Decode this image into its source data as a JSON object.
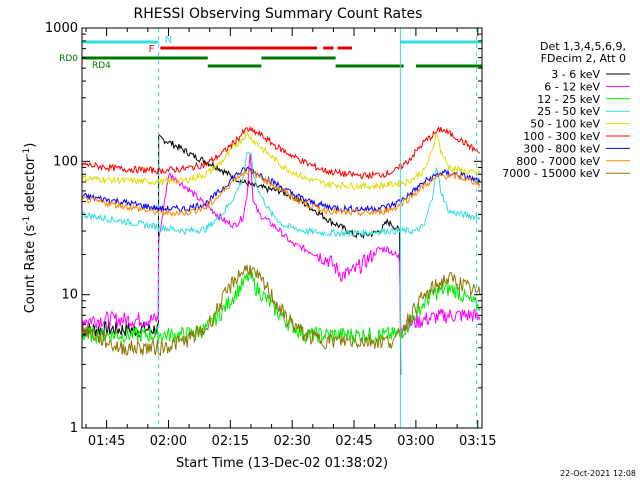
{
  "chart_data": {
    "type": "line",
    "title": "RHESSI Observing Summary Count Rates",
    "xlabel": "Start Time (13-Dec-02 01:38:02)",
    "ylabel_main": "Count Rate (s",
    "ylabel_sup1": "-1",
    "ylabel_mid": " detector",
    "ylabel_sup2": "-1",
    "ylabel_end": ")",
    "yscale": "log",
    "ylim": [
      1,
      1000
    ],
    "xlim_minutes": [
      1.0,
      98.0
    ],
    "ytick_values": [
      1,
      10,
      100,
      1000
    ],
    "ytick_labels": [
      "1",
      "10",
      "100",
      "1000"
    ],
    "xtick_minutes": [
      6.97,
      21.97,
      36.97,
      51.97,
      66.97,
      81.97,
      96.97
    ],
    "xtick_labels": [
      "01:45",
      "02:00",
      "02:15",
      "02:30",
      "02:45",
      "03:00",
      "03:15"
    ],
    "legend_header": [
      "Det 1,3,4,5,6,9,",
      "FDecim 2, Att 0"
    ],
    "legend_position": "right",
    "timestamp": "22-Oct-2021 12:08",
    "vlines_minutes": [
      {
        "t": 19.6,
        "style": "dashed",
        "color": "#33dddd"
      },
      {
        "t": 78.2,
        "style": "solid",
        "color": "#33dddd"
      },
      {
        "t": 96.7,
        "style": "dashed",
        "color": "#33dddd"
      }
    ],
    "flag_bars": [
      {
        "label": "N",
        "color": "#33dddd",
        "segments": [
          [
            1,
            19.6
          ],
          [
            78.2,
            98
          ]
        ]
      },
      {
        "label": "F",
        "color": "#e00000",
        "segments": [
          [
            20.0,
            58.0
          ],
          [
            59.5,
            62.0
          ],
          [
            63.0,
            66.5
          ]
        ]
      },
      {
        "label": "RD0",
        "color": "#007700",
        "segments": [
          [
            1,
            31.5
          ],
          [
            44.5,
            62.5
          ]
        ]
      },
      {
        "label": "RD4",
        "color": "#007700",
        "segments": [
          [
            31.5,
            44.5
          ],
          [
            62.5,
            79.0
          ],
          [
            82.0,
            98
          ]
        ]
      }
    ],
    "series": [
      {
        "name": "3 - 6 keV",
        "color": "#000000",
        "t": [
          1,
          19.5,
          19.6,
          22,
          25,
          28,
          31,
          34,
          37,
          40,
          43,
          46,
          49,
          52,
          55,
          58,
          61,
          64,
          67,
          70,
          72,
          73,
          74,
          75,
          76,
          77,
          78,
          78.3
        ],
        "values": [
          5.5,
          5.5,
          150,
          140,
          125,
          110,
          100,
          90,
          78,
          70,
          65,
          62,
          60,
          55,
          48,
          42,
          36,
          32,
          28,
          28,
          29,
          30,
          32,
          35,
          34,
          32,
          30,
          2.5
        ]
      },
      {
        "name": "6 - 12 keV",
        "color": "#ff00ff",
        "t": [
          1,
          19.5,
          19.6,
          22,
          26,
          30,
          33,
          36,
          38,
          40,
          41,
          41.8,
          42.5,
          44,
          46,
          49,
          52,
          55,
          58,
          61,
          64,
          67,
          70,
          73,
          75,
          77,
          78,
          78.3,
          80,
          84,
          87,
          90,
          93,
          96,
          97.5
        ],
        "values": [
          6.5,
          6.5,
          25,
          80,
          65,
          50,
          42,
          35,
          33,
          38,
          55,
          120,
          50,
          40,
          36,
          30,
          24,
          22,
          20,
          18,
          14,
          15,
          18,
          22,
          22,
          20,
          18,
          6,
          6,
          6.5,
          6.8,
          7,
          7,
          7,
          6.5
        ]
      },
      {
        "name": "12 - 25 keV",
        "color": "#00ee00",
        "t": [
          1,
          10,
          20,
          26,
          31,
          35,
          38,
          40,
          41.8,
          43,
          46,
          50,
          55,
          60,
          65,
          70,
          74,
          77,
          78,
          80,
          83,
          86,
          89,
          91,
          93,
          95,
          97.5
        ],
        "values": [
          5,
          5,
          5,
          5,
          5.5,
          7.5,
          10,
          12,
          14,
          11.5,
          9,
          6.5,
          5,
          5,
          5,
          5,
          5,
          5,
          5,
          6,
          8,
          10,
          11,
          11,
          10,
          9,
          8
        ]
      },
      {
        "name": "25 - 50 keV",
        "color": "#33dddd",
        "t": [
          1,
          10,
          20,
          26,
          31,
          35,
          38,
          40,
          41.0,
          41.8,
          42.6,
          44,
          47,
          50,
          55,
          60,
          65,
          70,
          74,
          77,
          79,
          82,
          84,
          86,
          87,
          88,
          90,
          93,
          97.5
        ],
        "values": [
          40,
          36,
          32,
          30,
          31,
          40,
          55,
          75,
          110,
          120,
          80,
          58,
          40,
          33,
          30,
          29,
          29,
          29,
          30,
          30,
          30,
          30,
          33,
          55,
          90,
          60,
          42,
          40,
          38
        ]
      },
      {
        "name": "50 - 100 keV",
        "color": "#dddd00",
        "t": [
          1,
          10,
          20,
          26,
          31,
          35,
          38,
          41,
          43,
          46,
          50,
          55,
          60,
          65,
          70,
          74,
          77,
          80,
          84,
          86,
          87,
          88,
          90,
          93,
          97.5
        ],
        "values": [
          75,
          72,
          70,
          72,
          80,
          100,
          130,
          160,
          140,
          115,
          90,
          75,
          68,
          66,
          65,
          66,
          68,
          70,
          85,
          120,
          170,
          120,
          90,
          85,
          80
        ]
      },
      {
        "name": "100 - 300 keV",
        "color": "#ff0000",
        "t": [
          1,
          10,
          20,
          26,
          31,
          35,
          38,
          41,
          44,
          48,
          52,
          56,
          60,
          65,
          70,
          74,
          77,
          80,
          84,
          88,
          92,
          95,
          97.5
        ],
        "values": [
          95,
          88,
          85,
          88,
          95,
          115,
          140,
          175,
          160,
          130,
          110,
          95,
          85,
          80,
          78,
          80,
          85,
          100,
          140,
          175,
          150,
          130,
          115
        ]
      },
      {
        "name": "300 - 800 keV",
        "color": "#0000ff",
        "t": [
          1,
          10,
          20,
          26,
          31,
          35,
          38,
          41,
          44,
          48,
          52,
          56,
          60,
          65,
          70,
          74,
          77,
          80,
          84,
          88,
          92,
          95,
          97.5
        ],
        "values": [
          55,
          50,
          44,
          44,
          48,
          62,
          78,
          88,
          80,
          68,
          57,
          50,
          46,
          44,
          44,
          45,
          48,
          55,
          70,
          82,
          80,
          75,
          70
        ]
      },
      {
        "name": "800 - 7000 keV",
        "color": "#ff8800",
        "t": [
          1,
          10,
          20,
          26,
          31,
          35,
          38,
          41,
          44,
          48,
          52,
          56,
          60,
          65,
          70,
          74,
          77,
          80,
          84,
          88,
          92,
          95,
          97.5
        ],
        "values": [
          52,
          47,
          41,
          41,
          45,
          58,
          74,
          85,
          77,
          65,
          54,
          47,
          43,
          41,
          41,
          42,
          45,
          52,
          66,
          78,
          77,
          72,
          68
        ]
      },
      {
        "name": "7000 - 15000 keV",
        "color": "#887700",
        "t": [
          1,
          10,
          20,
          26,
          31,
          35,
          38,
          40,
          41.5,
          43,
          46,
          50,
          55,
          60,
          65,
          70,
          74,
          77,
          78,
          80,
          83,
          86,
          89,
          91,
          93,
          95,
          97.5
        ],
        "values": [
          5.5,
          4,
          4,
          4.5,
          5.5,
          9,
          13,
          15,
          16,
          14,
          11,
          7,
          5,
          4.5,
          4.5,
          4.5,
          4.5,
          4.5,
          5,
          6.5,
          9,
          11,
          13,
          13,
          12,
          11,
          10
        ]
      }
    ]
  }
}
